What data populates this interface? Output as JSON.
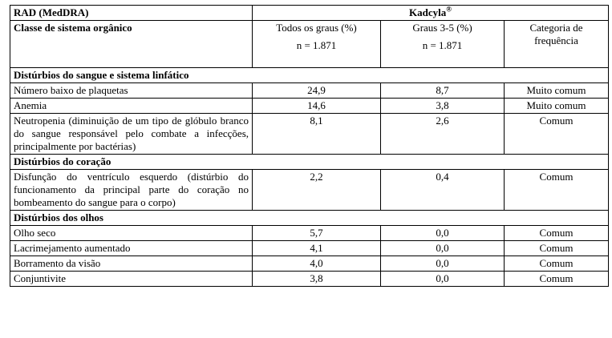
{
  "table": {
    "header": {
      "rad_label": "RAD (MedDRA)",
      "product": "Kadcyla",
      "product_mark": "®",
      "class_label": "Classe de sistema orgânico",
      "col_all": "Todos os graus (%)",
      "col_all_n": "n = 1.871",
      "col_severe": "Graus 3-5 (%)",
      "col_severe_n": "n = 1.871",
      "col_freq": "Categoria de frequência"
    },
    "sections": [
      {
        "title": "Distúrbios do sangue e sistema linfático",
        "rows": [
          {
            "term": "Número baixo de plaquetas",
            "all": "24,9",
            "severe": "8,7",
            "freq": "Muito comum"
          },
          {
            "term": "Anemia",
            "all": "14,6",
            "severe": "3,8",
            "freq": "Muito comum"
          },
          {
            "term": "Neutropenia (diminuição de um tipo de glóbulo branco do sangue responsável pelo combate a infecções, principalmente por bactérias)",
            "all": "8,1",
            "severe": "2,6",
            "freq": "Comum"
          }
        ]
      },
      {
        "title": "Distúrbios do coração",
        "rows": [
          {
            "term": "Disfunção do ventrículo esquerdo (distúrbio do funcionamento da principal parte do coração no bombeamento do sangue para o corpo)",
            "all": "2,2",
            "severe": "0,4",
            "freq": "Comum"
          }
        ]
      },
      {
        "title": "Distúrbios dos olhos",
        "rows": [
          {
            "term": "Olho seco",
            "all": "5,7",
            "severe": "0,0",
            "freq": "Comum"
          },
          {
            "term": "Lacrimejamento aumentado",
            "all": "4,1",
            "severe": "0,0",
            "freq": "Comum"
          },
          {
            "term": "Borramento da visão",
            "all": "4,0",
            "severe": "0,0",
            "freq": "Comum"
          },
          {
            "term": "Conjuntivite",
            "all": "3,8",
            "severe": "0,0",
            "freq": "Comum"
          }
        ]
      }
    ]
  }
}
